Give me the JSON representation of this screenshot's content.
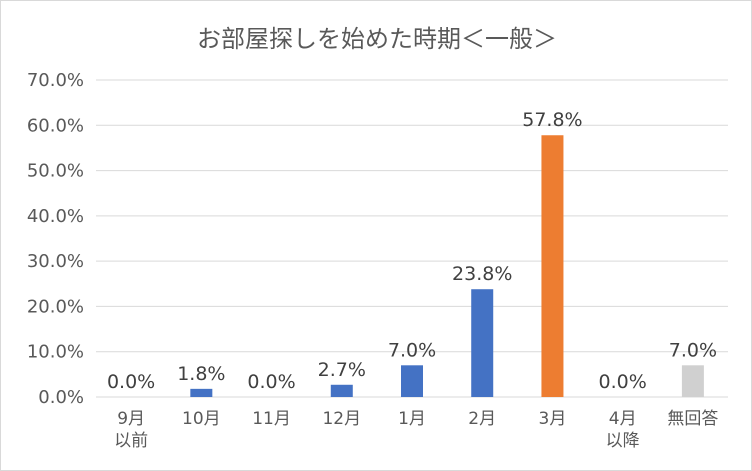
{
  "chart_data": {
    "type": "bar",
    "title": "お部屋探しを始めた時期＜一般＞",
    "xlabel": "",
    "ylabel": "",
    "ylim": [
      0,
      70
    ],
    "grid": true,
    "legend": "none",
    "y_ticks": [
      "0.0%",
      "10.0%",
      "20.0%",
      "30.0%",
      "40.0%",
      "50.0%",
      "60.0%",
      "70.0%"
    ],
    "categories": [
      [
        "9月",
        "以前"
      ],
      [
        "10月"
      ],
      [
        "11月"
      ],
      [
        "12月"
      ],
      [
        "1月"
      ],
      [
        "2月"
      ],
      [
        "3月"
      ],
      [
        "4月",
        "以降"
      ],
      [
        "無回答"
      ]
    ],
    "values": [
      0.0,
      1.8,
      0.0,
      2.7,
      7.0,
      23.8,
      57.8,
      0.0,
      7.0
    ],
    "data_labels": [
      "0.0%",
      "1.8%",
      "0.0%",
      "2.7%",
      "7.0%",
      "23.8%",
      "57.8%",
      "0.0%",
      "7.0%"
    ],
    "bar_colors": [
      "#4472c4",
      "#4472c4",
      "#4472c4",
      "#4472c4",
      "#4472c4",
      "#4472c4",
      "#ed7d31",
      "#4472c4",
      "#d0d0d0"
    ]
  }
}
